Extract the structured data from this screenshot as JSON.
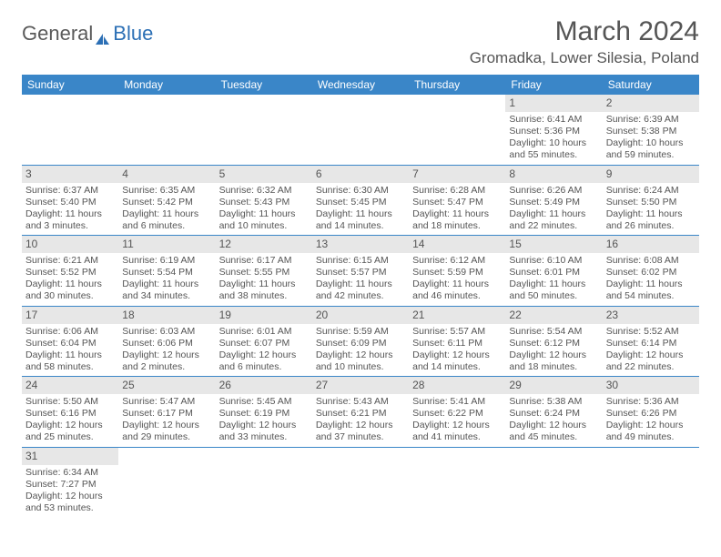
{
  "brand": {
    "general": "General",
    "blue": "Blue"
  },
  "title": "March 2024",
  "location": "Gromadka, Lower Silesia, Poland",
  "colors": {
    "header_bg": "#3a86c8",
    "header_text": "#ffffff",
    "daynum_bg": "#e7e7e7",
    "row_border": "#3a86c8",
    "text": "#555555",
    "logo_general": "#5a5a5a",
    "logo_blue": "#2b6fb5"
  },
  "day_names": [
    "Sunday",
    "Monday",
    "Tuesday",
    "Wednesday",
    "Thursday",
    "Friday",
    "Saturday"
  ],
  "weeks": [
    [
      {
        "blank": true
      },
      {
        "blank": true
      },
      {
        "blank": true
      },
      {
        "blank": true
      },
      {
        "blank": true
      },
      {
        "n": "1",
        "sunrise": "Sunrise: 6:41 AM",
        "sunset": "Sunset: 5:36 PM",
        "day1": "Daylight: 10 hours",
        "day2": "and 55 minutes."
      },
      {
        "n": "2",
        "sunrise": "Sunrise: 6:39 AM",
        "sunset": "Sunset: 5:38 PM",
        "day1": "Daylight: 10 hours",
        "day2": "and 59 minutes."
      }
    ],
    [
      {
        "n": "3",
        "sunrise": "Sunrise: 6:37 AM",
        "sunset": "Sunset: 5:40 PM",
        "day1": "Daylight: 11 hours",
        "day2": "and 3 minutes."
      },
      {
        "n": "4",
        "sunrise": "Sunrise: 6:35 AM",
        "sunset": "Sunset: 5:42 PM",
        "day1": "Daylight: 11 hours",
        "day2": "and 6 minutes."
      },
      {
        "n": "5",
        "sunrise": "Sunrise: 6:32 AM",
        "sunset": "Sunset: 5:43 PM",
        "day1": "Daylight: 11 hours",
        "day2": "and 10 minutes."
      },
      {
        "n": "6",
        "sunrise": "Sunrise: 6:30 AM",
        "sunset": "Sunset: 5:45 PM",
        "day1": "Daylight: 11 hours",
        "day2": "and 14 minutes."
      },
      {
        "n": "7",
        "sunrise": "Sunrise: 6:28 AM",
        "sunset": "Sunset: 5:47 PM",
        "day1": "Daylight: 11 hours",
        "day2": "and 18 minutes."
      },
      {
        "n": "8",
        "sunrise": "Sunrise: 6:26 AM",
        "sunset": "Sunset: 5:49 PM",
        "day1": "Daylight: 11 hours",
        "day2": "and 22 minutes."
      },
      {
        "n": "9",
        "sunrise": "Sunrise: 6:24 AM",
        "sunset": "Sunset: 5:50 PM",
        "day1": "Daylight: 11 hours",
        "day2": "and 26 minutes."
      }
    ],
    [
      {
        "n": "10",
        "sunrise": "Sunrise: 6:21 AM",
        "sunset": "Sunset: 5:52 PM",
        "day1": "Daylight: 11 hours",
        "day2": "and 30 minutes."
      },
      {
        "n": "11",
        "sunrise": "Sunrise: 6:19 AM",
        "sunset": "Sunset: 5:54 PM",
        "day1": "Daylight: 11 hours",
        "day2": "and 34 minutes."
      },
      {
        "n": "12",
        "sunrise": "Sunrise: 6:17 AM",
        "sunset": "Sunset: 5:55 PM",
        "day1": "Daylight: 11 hours",
        "day2": "and 38 minutes."
      },
      {
        "n": "13",
        "sunrise": "Sunrise: 6:15 AM",
        "sunset": "Sunset: 5:57 PM",
        "day1": "Daylight: 11 hours",
        "day2": "and 42 minutes."
      },
      {
        "n": "14",
        "sunrise": "Sunrise: 6:12 AM",
        "sunset": "Sunset: 5:59 PM",
        "day1": "Daylight: 11 hours",
        "day2": "and 46 minutes."
      },
      {
        "n": "15",
        "sunrise": "Sunrise: 6:10 AM",
        "sunset": "Sunset: 6:01 PM",
        "day1": "Daylight: 11 hours",
        "day2": "and 50 minutes."
      },
      {
        "n": "16",
        "sunrise": "Sunrise: 6:08 AM",
        "sunset": "Sunset: 6:02 PM",
        "day1": "Daylight: 11 hours",
        "day2": "and 54 minutes."
      }
    ],
    [
      {
        "n": "17",
        "sunrise": "Sunrise: 6:06 AM",
        "sunset": "Sunset: 6:04 PM",
        "day1": "Daylight: 11 hours",
        "day2": "and 58 minutes."
      },
      {
        "n": "18",
        "sunrise": "Sunrise: 6:03 AM",
        "sunset": "Sunset: 6:06 PM",
        "day1": "Daylight: 12 hours",
        "day2": "and 2 minutes."
      },
      {
        "n": "19",
        "sunrise": "Sunrise: 6:01 AM",
        "sunset": "Sunset: 6:07 PM",
        "day1": "Daylight: 12 hours",
        "day2": "and 6 minutes."
      },
      {
        "n": "20",
        "sunrise": "Sunrise: 5:59 AM",
        "sunset": "Sunset: 6:09 PM",
        "day1": "Daylight: 12 hours",
        "day2": "and 10 minutes."
      },
      {
        "n": "21",
        "sunrise": "Sunrise: 5:57 AM",
        "sunset": "Sunset: 6:11 PM",
        "day1": "Daylight: 12 hours",
        "day2": "and 14 minutes."
      },
      {
        "n": "22",
        "sunrise": "Sunrise: 5:54 AM",
        "sunset": "Sunset: 6:12 PM",
        "day1": "Daylight: 12 hours",
        "day2": "and 18 minutes."
      },
      {
        "n": "23",
        "sunrise": "Sunrise: 5:52 AM",
        "sunset": "Sunset: 6:14 PM",
        "day1": "Daylight: 12 hours",
        "day2": "and 22 minutes."
      }
    ],
    [
      {
        "n": "24",
        "sunrise": "Sunrise: 5:50 AM",
        "sunset": "Sunset: 6:16 PM",
        "day1": "Daylight: 12 hours",
        "day2": "and 25 minutes."
      },
      {
        "n": "25",
        "sunrise": "Sunrise: 5:47 AM",
        "sunset": "Sunset: 6:17 PM",
        "day1": "Daylight: 12 hours",
        "day2": "and 29 minutes."
      },
      {
        "n": "26",
        "sunrise": "Sunrise: 5:45 AM",
        "sunset": "Sunset: 6:19 PM",
        "day1": "Daylight: 12 hours",
        "day2": "and 33 minutes."
      },
      {
        "n": "27",
        "sunrise": "Sunrise: 5:43 AM",
        "sunset": "Sunset: 6:21 PM",
        "day1": "Daylight: 12 hours",
        "day2": "and 37 minutes."
      },
      {
        "n": "28",
        "sunrise": "Sunrise: 5:41 AM",
        "sunset": "Sunset: 6:22 PM",
        "day1": "Daylight: 12 hours",
        "day2": "and 41 minutes."
      },
      {
        "n": "29",
        "sunrise": "Sunrise: 5:38 AM",
        "sunset": "Sunset: 6:24 PM",
        "day1": "Daylight: 12 hours",
        "day2": "and 45 minutes."
      },
      {
        "n": "30",
        "sunrise": "Sunrise: 5:36 AM",
        "sunset": "Sunset: 6:26 PM",
        "day1": "Daylight: 12 hours",
        "day2": "and 49 minutes."
      }
    ],
    [
      {
        "n": "31",
        "sunrise": "Sunrise: 6:34 AM",
        "sunset": "Sunset: 7:27 PM",
        "day1": "Daylight: 12 hours",
        "day2": "and 53 minutes."
      },
      {
        "blank": true
      },
      {
        "blank": true
      },
      {
        "blank": true
      },
      {
        "blank": true
      },
      {
        "blank": true
      },
      {
        "blank": true
      }
    ]
  ]
}
